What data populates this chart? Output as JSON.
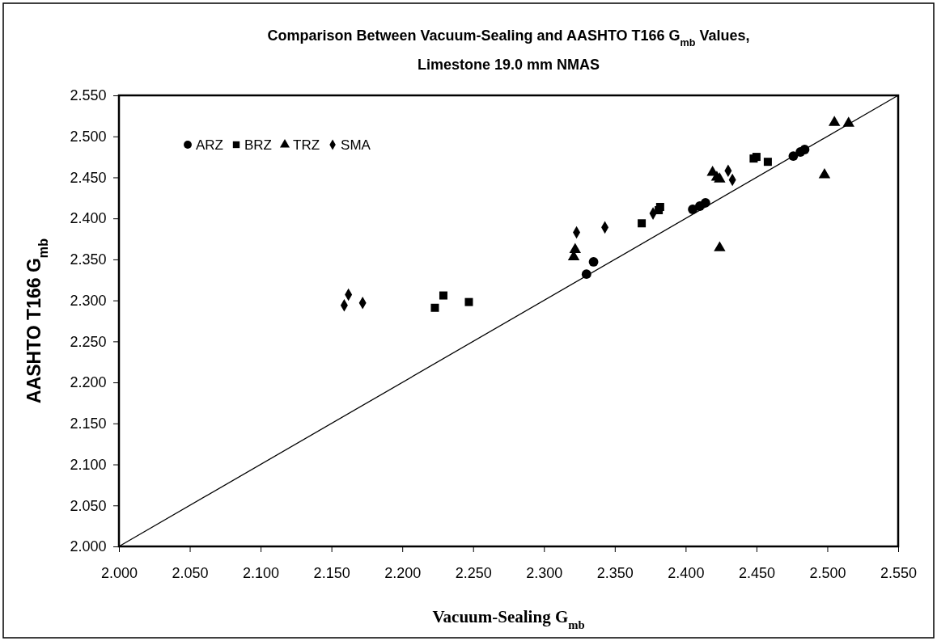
{
  "chart_data": {
    "type": "scatter",
    "title": "Comparison Between Vacuum-Sealing and AASHTO T166 G$_{mb}$ Values, Limestone 19.0 mm NMAS",
    "xlabel": "Vacuum-Sealing G$_{mb}$",
    "ylabel": "AASHTO T166 G$_{mb}$",
    "xlim": [
      2.0,
      2.55
    ],
    "ylim": [
      2.0,
      2.55
    ],
    "xticks": [
      {
        "value": 2.0,
        "label": "2.000"
      },
      {
        "value": 2.05,
        "label": "2.050"
      },
      {
        "value": 2.1,
        "label": "2.100"
      },
      {
        "value": 2.15,
        "label": "2.150"
      },
      {
        "value": 2.2,
        "label": "2.200"
      },
      {
        "value": 2.25,
        "label": "2.250"
      },
      {
        "value": 2.3,
        "label": "2.300"
      },
      {
        "value": 2.35,
        "label": "2.350"
      },
      {
        "value": 2.4,
        "label": "2.400"
      },
      {
        "value": 2.45,
        "label": "2.450"
      },
      {
        "value": 2.5,
        "label": "2.500"
      },
      {
        "value": 2.55,
        "label": "2.550"
      }
    ],
    "yticks": [
      {
        "value": 2.0,
        "label": "2.000"
      },
      {
        "value": 2.05,
        "label": "2.050"
      },
      {
        "value": 2.1,
        "label": "2.100"
      },
      {
        "value": 2.15,
        "label": "2.150"
      },
      {
        "value": 2.2,
        "label": "2.200"
      },
      {
        "value": 2.25,
        "label": "2.250"
      },
      {
        "value": 2.3,
        "label": "2.300"
      },
      {
        "value": 2.35,
        "label": "2.350"
      },
      {
        "value": 2.4,
        "label": "2.400"
      },
      {
        "value": 2.45,
        "label": "2.450"
      },
      {
        "value": 2.5,
        "label": "2.500"
      },
      {
        "value": 2.55,
        "label": "2.550"
      }
    ],
    "grid": false,
    "legend": "top left",
    "series": [
      {
        "name": "ARZ",
        "color": "#000000",
        "marker": "circle",
        "x": [
          2.33,
          2.335,
          2.405,
          2.41,
          2.414,
          2.476,
          2.481,
          2.484
        ],
        "values": [
          2.332,
          2.347,
          2.411,
          2.415,
          2.419,
          2.476,
          2.481,
          2.484
        ]
      },
      {
        "name": "BRZ",
        "color": "#000000",
        "marker": "square",
        "x": [
          2.223,
          2.229,
          2.247,
          2.369,
          2.381,
          2.382,
          2.448,
          2.45,
          2.458
        ],
        "values": [
          2.291,
          2.306,
          2.298,
          2.394,
          2.41,
          2.414,
          2.473,
          2.475,
          2.469
        ]
      },
      {
        "name": "TRZ",
        "color": "#000000",
        "marker": "triangle",
        "x": [
          2.321,
          2.322,
          2.419,
          2.422,
          2.424,
          2.424,
          2.498,
          2.505,
          2.515
        ],
        "values": [
          2.353,
          2.362,
          2.456,
          2.45,
          2.448,
          2.364,
          2.453,
          2.517,
          2.516
        ]
      },
      {
        "name": "SMA",
        "color": "#000000",
        "marker": "diamond",
        "x": [
          2.159,
          2.162,
          2.172,
          2.323,
          2.343,
          2.377,
          2.43,
          2.433
        ],
        "values": [
          2.294,
          2.307,
          2.297,
          2.383,
          2.389,
          2.406,
          2.458,
          2.447
        ]
      },
      {
        "type": "line",
        "color": "#000000",
        "marker": "none",
        "line_style": "solid",
        "x": [
          2.0,
          2.55
        ],
        "values": [
          2.0,
          2.55
        ]
      }
    ]
  }
}
